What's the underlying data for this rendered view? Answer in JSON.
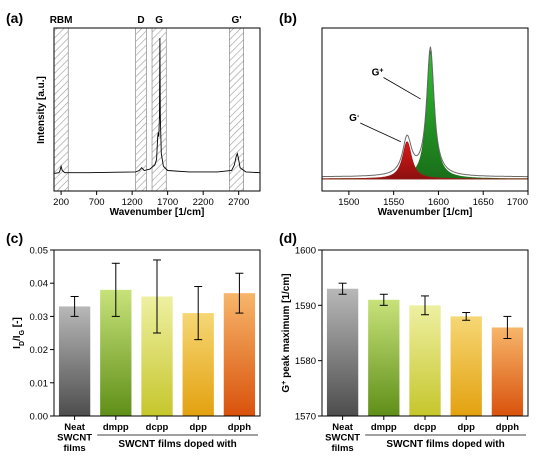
{
  "chart_data": [
    {
      "panel_label": "(a)",
      "type": "line",
      "xlabel": "Wavenumber [1/cm]",
      "ylabel": "Intensity [a.u.]",
      "xlim": [
        100,
        3000
      ],
      "xticks": [
        "200",
        "700",
        "1200",
        "1700",
        "2200",
        "2700"
      ],
      "bands": [
        {
          "label": "RBM",
          "range": [
            100,
            300
          ]
        },
        {
          "label": "D",
          "range": [
            1250,
            1400
          ]
        },
        {
          "label": "G",
          "range": [
            1480,
            1680
          ]
        },
        {
          "label": "G'",
          "range": [
            2570,
            2770
          ]
        }
      ],
      "spectrum": {
        "x": [
          100,
          170,
          185,
          200,
          215,
          250,
          600,
          1000,
          1250,
          1300,
          1335,
          1370,
          1450,
          1520,
          1545,
          1560,
          1568,
          1575,
          1585,
          1591,
          1597,
          1610,
          1640,
          1700,
          2000,
          2400,
          2600,
          2640,
          2665,
          2680,
          2695,
          2720,
          2800,
          3000
        ],
        "y": [
          0.04,
          0.045,
          0.06,
          0.09,
          0.06,
          0.045,
          0.045,
          0.048,
          0.05,
          0.06,
          0.08,
          0.06,
          0.07,
          0.1,
          0.14,
          0.3,
          0.33,
          0.3,
          0.45,
          1.0,
          0.45,
          0.18,
          0.09,
          0.06,
          0.05,
          0.05,
          0.06,
          0.1,
          0.16,
          0.18,
          0.15,
          0.08,
          0.05,
          0.045
        ]
      }
    },
    {
      "panel_label": "(b)",
      "type": "area",
      "xlabel": "Wavenumber [1/cm]",
      "xlim": [
        1470,
        1700
      ],
      "xticks": [
        "1500",
        "1550",
        "1600",
        "1650",
        "1700"
      ],
      "peaks": [
        {
          "label": "G+",
          "center": 1591,
          "height": 0.93,
          "width": 10,
          "color": "#2fc22f"
        },
        {
          "label": "G-",
          "center": 1565,
          "height": 0.27,
          "width": 12,
          "color": "#e01818"
        }
      ],
      "annotations": [
        {
          "base": "G",
          "sup": "+",
          "x": 1532,
          "y": 0.75,
          "arrow_to": [
            1580,
            0.58
          ]
        },
        {
          "base": "G",
          "sup": "-",
          "x": 1506,
          "y": 0.42,
          "arrow_to": [
            1558,
            0.27
          ]
        }
      ]
    },
    {
      "panel_label": "(c)",
      "type": "bar",
      "ylabel_parts": {
        "a": "I",
        "a_sub": "D",
        "sep": "/I",
        "b_sub": "G",
        "rest": " [-]"
      },
      "ylim": [
        0.0,
        0.05
      ],
      "yticks": [
        "0.00",
        "0.01",
        "0.02",
        "0.03",
        "0.04",
        "0.05"
      ],
      "categories": [
        [
          "Neat",
          "SWCNT",
          "films"
        ],
        [
          "dmpp"
        ],
        [
          "dcpp"
        ],
        [
          "dpp"
        ],
        [
          "dpph"
        ]
      ],
      "group_label": "SWCNT films doped with",
      "values": [
        0.033,
        0.038,
        0.036,
        0.031,
        0.037
      ],
      "errors": [
        0.003,
        0.008,
        0.011,
        0.008,
        0.006
      ],
      "colors": [
        [
          "#b8b8b8",
          "#4d4d4d"
        ],
        [
          "#c8e27a",
          "#5f8f18"
        ],
        [
          "#eef0a2",
          "#c6c62c"
        ],
        [
          "#f6d775",
          "#e3a10f"
        ],
        [
          "#f7b66a",
          "#d9520c"
        ]
      ]
    },
    {
      "panel_label": "(d)",
      "type": "bar",
      "ylabel_parts": {
        "a": "G",
        "a_sup": "+",
        "rest": " peak maximum [1/cm]"
      },
      "ylim": [
        1570,
        1600
      ],
      "yticks": [
        "1570",
        "1580",
        "1590",
        "1600"
      ],
      "categories": [
        [
          "Neat",
          "SWCNT",
          "films"
        ],
        [
          "dmpp"
        ],
        [
          "dcpp"
        ],
        [
          "dpp"
        ],
        [
          "dpph"
        ]
      ],
      "group_label": "SWCNT films doped with",
      "values": [
        1593,
        1591,
        1590,
        1588,
        1586
      ],
      "errors": [
        1.0,
        1.0,
        1.7,
        0.7,
        2.0
      ],
      "colors": [
        [
          "#b8b8b8",
          "#4d4d4d"
        ],
        [
          "#c8e27a",
          "#5f8f18"
        ],
        [
          "#eef0a2",
          "#c6c62c"
        ],
        [
          "#f6d775",
          "#e3a10f"
        ],
        [
          "#f7b66a",
          "#d9520c"
        ]
      ]
    }
  ]
}
